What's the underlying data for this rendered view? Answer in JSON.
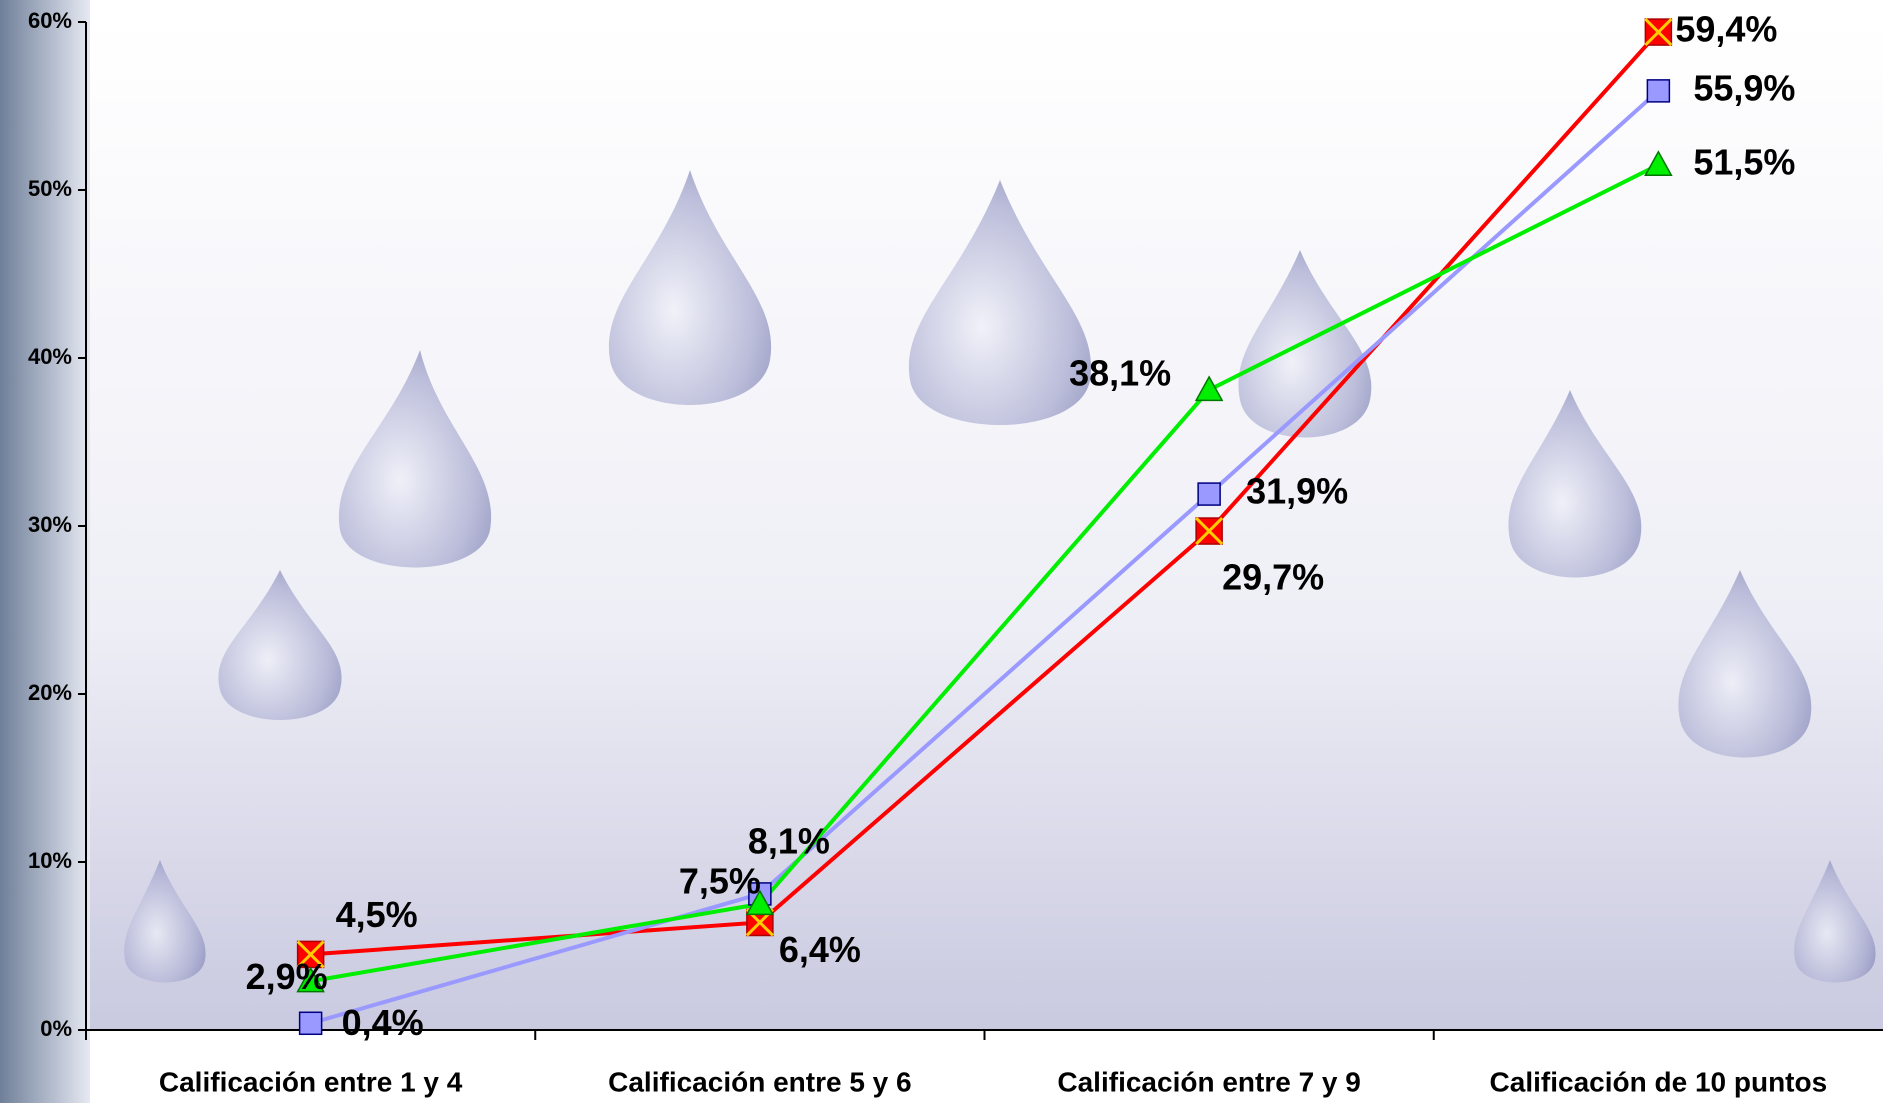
{
  "chart_data": {
    "type": "line",
    "categories": [
      "Calificación entre 1 y 4",
      "Calificación entre 5 y 6",
      "Calificación entre 7 y 9",
      "Calificación de 10 puntos"
    ],
    "series": [
      {
        "color": "#ff0000",
        "marker": "square-x",
        "values": [
          4.5,
          6.4,
          29.7,
          59.4
        ],
        "value_labels": [
          "4,5%",
          "6,4%",
          "29,7%",
          "59,4%"
        ]
      },
      {
        "color": "#9999ff",
        "marker": "square",
        "values": [
          0.4,
          8.1,
          31.9,
          55.9
        ],
        "value_labels": [
          "0,4%",
          "8,1%",
          "31,9%",
          "55,9%"
        ]
      },
      {
        "color": "#00ee00",
        "marker": "triangle",
        "values": [
          2.9,
          7.5,
          38.1,
          51.5
        ],
        "value_labels": [
          "2,9%",
          "7,5%",
          "38,1%",
          "51,5%"
        ]
      }
    ],
    "ylim": [
      0,
      60
    ],
    "yticks": [
      {
        "value": 0,
        "label": "0%"
      },
      {
        "value": 10,
        "label": "10%"
      },
      {
        "value": 20,
        "label": "20%"
      },
      {
        "value": 30,
        "label": "30%"
      },
      {
        "value": 40,
        "label": "40%"
      },
      {
        "value": 50,
        "label": "50%"
      },
      {
        "value": 60,
        "label": "60%"
      }
    ],
    "grid": false
  }
}
